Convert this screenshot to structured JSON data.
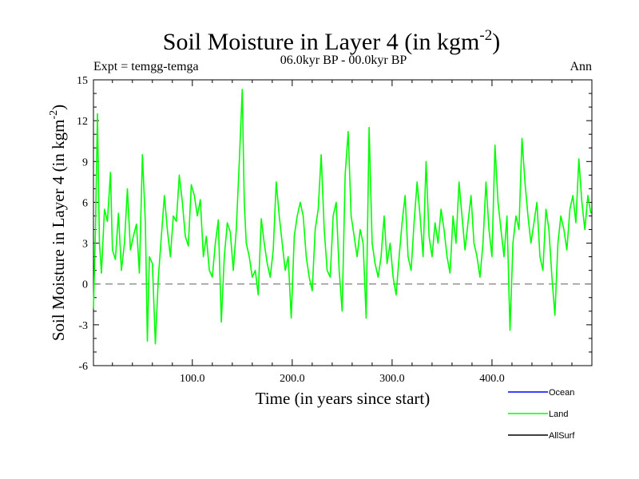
{
  "chart_data": {
    "type": "line",
    "title": "Soil Moisture in Layer 4 (in kgm",
    "title_superscript": "-2",
    "title_close": ")",
    "subtitle": "06.0kyr BP - 00.0kyr BP",
    "left_label": "Expt = temgg-temga",
    "right_label": "Ann",
    "xlabel": "Time (in years since start)",
    "ylabel": "Soil Moisture in Layer 4 (in kgm",
    "ylabel_superscript": "-2",
    "ylabel_close": ")",
    "xlim": [
      1,
      500
    ],
    "ylim": [
      -6,
      15
    ],
    "x_ticks": [
      100,
      200,
      300,
      400
    ],
    "x_tick_labels": [
      "100.0",
      "200.0",
      "300.0",
      "400.0"
    ],
    "y_ticks": [
      -6,
      -3,
      0,
      3,
      6,
      9,
      12,
      15
    ],
    "y_tick_labels": [
      "-6",
      "-3",
      "0",
      "3",
      "6",
      "9",
      "12",
      "15"
    ],
    "reference_line": {
      "y": 0,
      "style": "dashed",
      "color": "#808080"
    },
    "legend": [
      {
        "name": "Ocean",
        "color": "#0000ff"
      },
      {
        "name": "Land",
        "color": "#00ff00"
      },
      {
        "name": "AllSurf",
        "color": "#000000"
      }
    ],
    "series": [
      {
        "name": "Land",
        "color": "#00ff00",
        "x": [
          1,
          3,
          5,
          7,
          9,
          12,
          15,
          18,
          20,
          23,
          26,
          29,
          32,
          35,
          38,
          41,
          44,
          47,
          50,
          53,
          55,
          57,
          60,
          63,
          66,
          69,
          72,
          75,
          78,
          81,
          84,
          87,
          90,
          93,
          96,
          99,
          102,
          105,
          108,
          111,
          114,
          117,
          120,
          123,
          126,
          129,
          132,
          135,
          138,
          141,
          144,
          147,
          150,
          152,
          154,
          157,
          160,
          163,
          166,
          169,
          172,
          175,
          178,
          181,
          184,
          187,
          190,
          193,
          196,
          199,
          202,
          205,
          208,
          211,
          214,
          217,
          220,
          223,
          226,
          229,
          232,
          235,
          238,
          241,
          244,
          247,
          250,
          253,
          256,
          259,
          262,
          265,
          268,
          271,
          274,
          277,
          280,
          283,
          286,
          289,
          292,
          295,
          298,
          301,
          304,
          307,
          310,
          313,
          316,
          319,
          322,
          325,
          328,
          331,
          334,
          337,
          340,
          343,
          346,
          349,
          352,
          355,
          358,
          361,
          364,
          367,
          370,
          373,
          376,
          379,
          382,
          385,
          388,
          391,
          394,
          397,
          400,
          403,
          406,
          409,
          412,
          415,
          418,
          421,
          424,
          427,
          430,
          433,
          436,
          439,
          442,
          445,
          448,
          451,
          454,
          457,
          460,
          463,
          466,
          469,
          472,
          475,
          478,
          481,
          484,
          487,
          490,
          493,
          496,
          499
        ],
        "values": [
          -1.8,
          4.0,
          12.5,
          3.0,
          0.8,
          5.5,
          4.6,
          8.2,
          2.5,
          1.8,
          5.2,
          1.0,
          3.0,
          7.0,
          2.5,
          3.5,
          4.4,
          0.8,
          9.5,
          4.5,
          -4.2,
          2.0,
          1.5,
          -4.4,
          0.5,
          3.5,
          6.5,
          4.0,
          2.0,
          5.0,
          4.6,
          8.0,
          6.0,
          3.5,
          2.8,
          7.3,
          6.5,
          5.0,
          6.2,
          2.0,
          3.5,
          1.0,
          0.5,
          3.0,
          4.7,
          -2.8,
          2.0,
          4.5,
          3.8,
          1.0,
          4.0,
          9.0,
          14.3,
          6.0,
          3.0,
          2.0,
          0.5,
          1.0,
          -0.8,
          4.8,
          3.0,
          1.5,
          0.5,
          2.5,
          7.5,
          5.0,
          3.0,
          1.0,
          2.0,
          -2.5,
          3.5,
          5.0,
          6.0,
          5.0,
          2.0,
          0.5,
          -0.5,
          4.0,
          5.5,
          9.5,
          4.0,
          1.0,
          0.5,
          5.0,
          6.0,
          1.0,
          -2.0,
          8.0,
          11.2,
          5.0,
          3.5,
          2.0,
          4.0,
          3.0,
          -2.5,
          11.5,
          3.0,
          1.5,
          0.5,
          2.0,
          5.0,
          1.5,
          3.0,
          0.5,
          -0.8,
          2.0,
          4.5,
          6.5,
          2.0,
          1.0,
          4.5,
          7.5,
          5.0,
          2.0,
          9.0,
          3.5,
          2.0,
          4.5,
          3.0,
          5.5,
          4.0,
          2.0,
          0.8,
          5.0,
          3.0,
          7.5,
          5.0,
          2.5,
          4.5,
          6.5,
          3.0,
          2.0,
          0.5,
          3.0,
          7.5,
          4.0,
          2.0,
          10.2,
          6.0,
          4.0,
          2.0,
          5.0,
          -3.4,
          3.0,
          5.0,
          4.0,
          10.7,
          7.5,
          5.0,
          3.0,
          4.5,
          6.0,
          2.0,
          1.0,
          5.5,
          4.0,
          0.5,
          -2.3,
          3.0,
          5.0,
          4.0,
          2.5,
          5.5,
          6.5,
          4.5,
          9.2,
          6.0,
          4.0,
          6.5,
          5.2
        ]
      }
    ]
  }
}
